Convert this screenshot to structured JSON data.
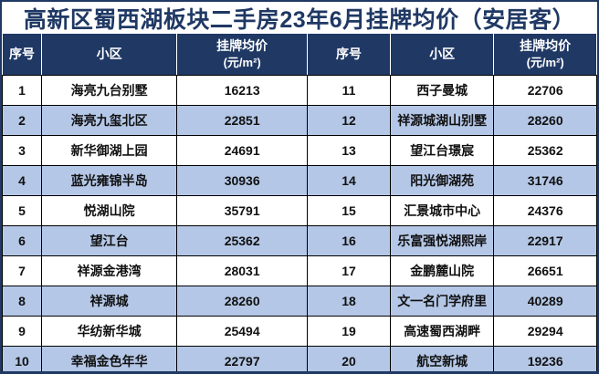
{
  "title": "高新区蜀西湖板块二手房23年6月挂牌均价（安居客）",
  "colors": {
    "header_navy": "#1f3864",
    "stripe_blue": "#b4c7e7",
    "title_text": "#1f3864",
    "header_text": "#ffffff",
    "cell_text": "#111111"
  },
  "headers": {
    "index": "序号",
    "community": "小区",
    "price_line1": "挂牌均价",
    "price_line2": "(元/m²)"
  },
  "table": {
    "left_rows": [
      {
        "no": "1",
        "community": "海亮九台别墅",
        "price": "16213"
      },
      {
        "no": "2",
        "community": "海亮九玺北区",
        "price": "22851"
      },
      {
        "no": "3",
        "community": "新华御湖上园",
        "price": "24691"
      },
      {
        "no": "4",
        "community": "蓝光雍锦半岛",
        "price": "30936"
      },
      {
        "no": "5",
        "community": "悦湖山院",
        "price": "35791"
      },
      {
        "no": "6",
        "community": "望江台",
        "price": "25362"
      },
      {
        "no": "7",
        "community": "祥源金港湾",
        "price": "28031"
      },
      {
        "no": "8",
        "community": "祥源城",
        "price": "28260"
      },
      {
        "no": "9",
        "community": "华纺新华城",
        "price": "25494"
      },
      {
        "no": "10",
        "community": "幸福金色年华",
        "price": "22797"
      }
    ],
    "right_rows": [
      {
        "no": "11",
        "community": "西子曼城",
        "price": "22706"
      },
      {
        "no": "12",
        "community": "祥源城湖山别墅",
        "price": "28260"
      },
      {
        "no": "13",
        "community": "望江台璟宸",
        "price": "25362"
      },
      {
        "no": "14",
        "community": "阳光御湖苑",
        "price": "31746"
      },
      {
        "no": "15",
        "community": "汇景城市中心",
        "price": "24376"
      },
      {
        "no": "16",
        "community": "乐富强悦湖熙岸",
        "price": "22917"
      },
      {
        "no": "17",
        "community": "金鹏麓山院",
        "price": "26651"
      },
      {
        "no": "18",
        "community": "文一名门学府里",
        "price": "40289"
      },
      {
        "no": "19",
        "community": "高速蜀西湖畔",
        "price": "29294"
      },
      {
        "no": "20",
        "community": "航空新城",
        "price": "19236"
      }
    ]
  },
  "chart_data": {
    "type": "table",
    "title": "高新区蜀西湖板块二手房23年6月挂牌均价（安居客）",
    "columns": [
      "序号",
      "小区",
      "挂牌均价(元/m²)"
    ],
    "rows": [
      [
        1,
        "海亮九台别墅",
        16213
      ],
      [
        2,
        "海亮九玺北区",
        22851
      ],
      [
        3,
        "新华御湖上园",
        24691
      ],
      [
        4,
        "蓝光雍锦半岛",
        30936
      ],
      [
        5,
        "悦湖山院",
        35791
      ],
      [
        6,
        "望江台",
        25362
      ],
      [
        7,
        "祥源金港湾",
        28031
      ],
      [
        8,
        "祥源城",
        28260
      ],
      [
        9,
        "华纺新华城",
        25494
      ],
      [
        10,
        "幸福金色年华",
        22797
      ],
      [
        11,
        "西子曼城",
        22706
      ],
      [
        12,
        "祥源城湖山别墅",
        28260
      ],
      [
        13,
        "望江台璟宸",
        25362
      ],
      [
        14,
        "阳光御湖苑",
        31746
      ],
      [
        15,
        "汇景城市中心",
        24376
      ],
      [
        16,
        "乐富强悦湖熙岸",
        22917
      ],
      [
        17,
        "金鹏麓山院",
        26651
      ],
      [
        18,
        "文一名门学府里",
        40289
      ],
      [
        19,
        "高速蜀西湖畔",
        29294
      ],
      [
        20,
        "航空新城",
        19236
      ]
    ]
  }
}
